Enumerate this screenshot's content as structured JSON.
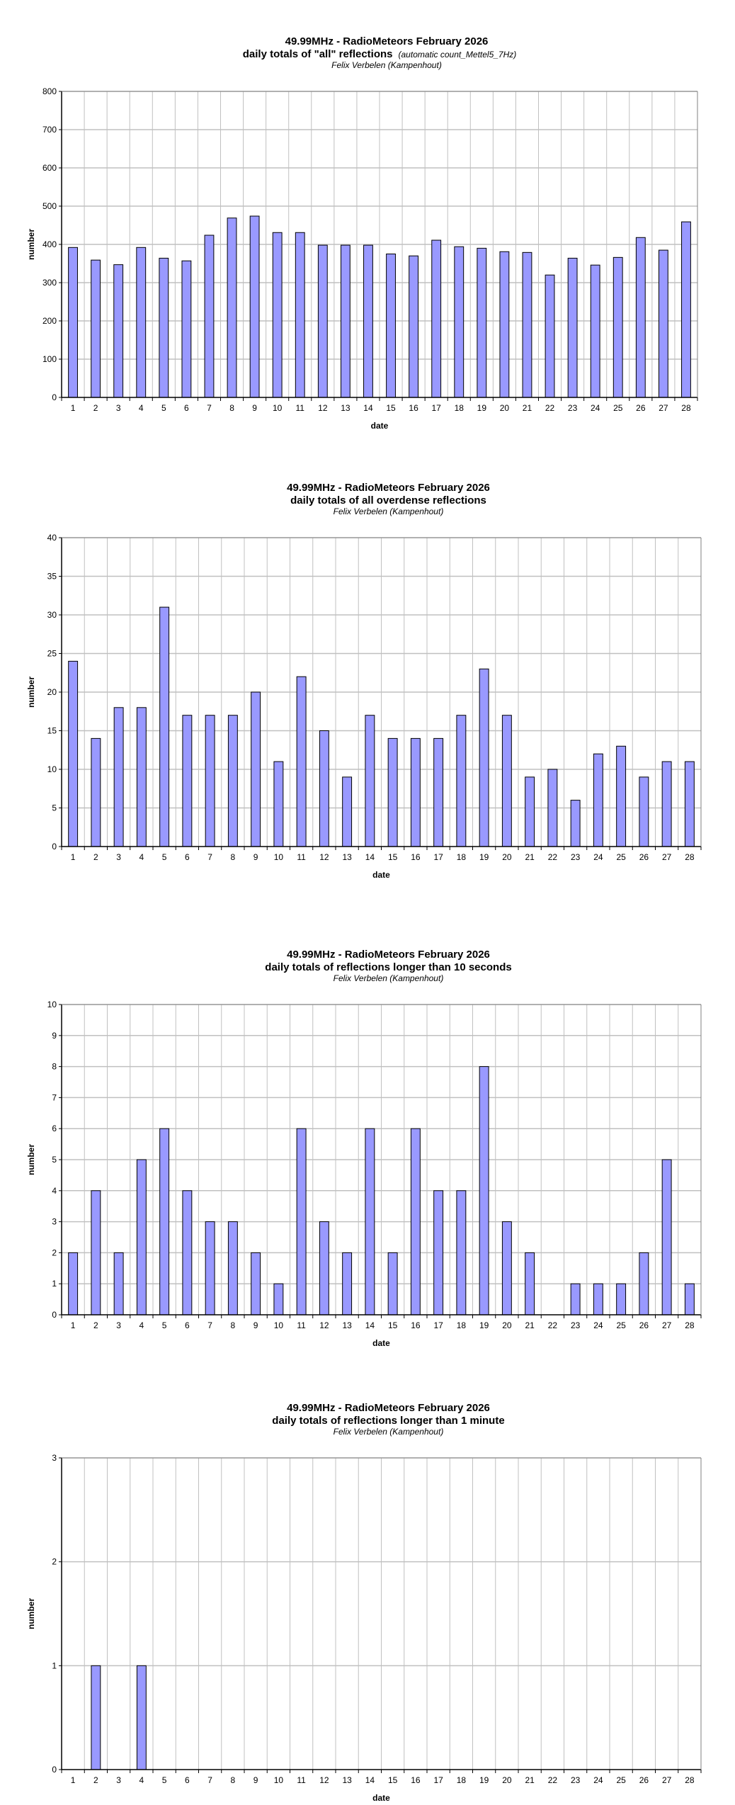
{
  "chart_data": [
    {
      "type": "bar",
      "title": "49.99MHz - RadioMeteors February 2026",
      "subtitle": "daily totals of \"all\" reflections",
      "subtitle_note": "(automatic count_Mettel5_7Hz)",
      "author": "Felix Verbelen (Kampenhout)",
      "xlabel": "date",
      "ylabel": "number",
      "ylim": [
        0,
        800
      ],
      "ystep": 100,
      "grid": true,
      "categories": [
        "1",
        "2",
        "3",
        "4",
        "5",
        "6",
        "7",
        "8",
        "9",
        "10",
        "11",
        "12",
        "13",
        "14",
        "15",
        "16",
        "17",
        "18",
        "19",
        "20",
        "21",
        "22",
        "23",
        "24",
        "25",
        "26",
        "27",
        "28"
      ],
      "values": [
        392,
        359,
        347,
        392,
        364,
        357,
        424,
        469,
        474,
        431,
        431,
        398,
        398,
        398,
        375,
        370,
        411,
        394,
        390,
        381,
        379,
        320,
        364,
        346,
        366,
        418,
        385,
        459
      ]
    },
    {
      "type": "bar",
      "title": "49.99MHz - RadioMeteors February 2026",
      "subtitle": "daily totals of all overdense reflections",
      "author": "Felix Verbelen (Kampenhout)",
      "xlabel": "date",
      "ylabel": "number",
      "ylim": [
        0,
        40
      ],
      "ystep": 5,
      "grid": true,
      "categories": [
        "1",
        "2",
        "3",
        "4",
        "5",
        "6",
        "7",
        "8",
        "9",
        "10",
        "11",
        "12",
        "13",
        "14",
        "15",
        "16",
        "17",
        "18",
        "19",
        "20",
        "21",
        "22",
        "23",
        "24",
        "25",
        "26",
        "27",
        "28"
      ],
      "values": [
        24,
        14,
        18,
        18,
        31,
        17,
        17,
        17,
        20,
        11,
        22,
        15,
        9,
        17,
        14,
        14,
        14,
        17,
        23,
        17,
        9,
        10,
        6,
        12,
        13,
        9,
        11,
        11
      ]
    },
    {
      "type": "bar",
      "title": "49.99MHz - RadioMeteors February 2026",
      "subtitle": "daily totals of reflections longer than 10 seconds",
      "author": "Felix Verbelen (Kampenhout)",
      "xlabel": "date",
      "ylabel": "number",
      "ylim": [
        0,
        10
      ],
      "ystep": 1,
      "grid": true,
      "categories": [
        "1",
        "2",
        "3",
        "4",
        "5",
        "6",
        "7",
        "8",
        "9",
        "10",
        "11",
        "12",
        "13",
        "14",
        "15",
        "16",
        "17",
        "18",
        "19",
        "20",
        "21",
        "22",
        "23",
        "24",
        "25",
        "26",
        "27",
        "28"
      ],
      "values": [
        2,
        4,
        2,
        5,
        6,
        4,
        3,
        3,
        2,
        1,
        6,
        3,
        2,
        6,
        2,
        6,
        4,
        4,
        8,
        3,
        2,
        0,
        1,
        1,
        1,
        2,
        5,
        1
      ]
    },
    {
      "type": "bar",
      "title": "49.99MHz - RadioMeteors February 2026",
      "subtitle": "daily totals of reflections longer than 1 minute",
      "author": "Felix Verbelen (Kampenhout)",
      "xlabel": "date",
      "ylabel": "number",
      "ylim": [
        0,
        3
      ],
      "ystep": 1,
      "grid": true,
      "categories": [
        "1",
        "2",
        "3",
        "4",
        "5",
        "6",
        "7",
        "8",
        "9",
        "10",
        "11",
        "12",
        "13",
        "14",
        "15",
        "16",
        "17",
        "18",
        "19",
        "20",
        "21",
        "22",
        "23",
        "24",
        "25",
        "26",
        "27",
        "28"
      ],
      "values": [
        0,
        1,
        0,
        1,
        0,
        0,
        0,
        0,
        0,
        0,
        0,
        0,
        0,
        0,
        0,
        0,
        0,
        0,
        0,
        0,
        0,
        0,
        0,
        0,
        0,
        0,
        0,
        0
      ]
    }
  ],
  "colors": {
    "bar": "#9999ff",
    "grid": "#c0c0c0",
    "axis": "#000000"
  }
}
